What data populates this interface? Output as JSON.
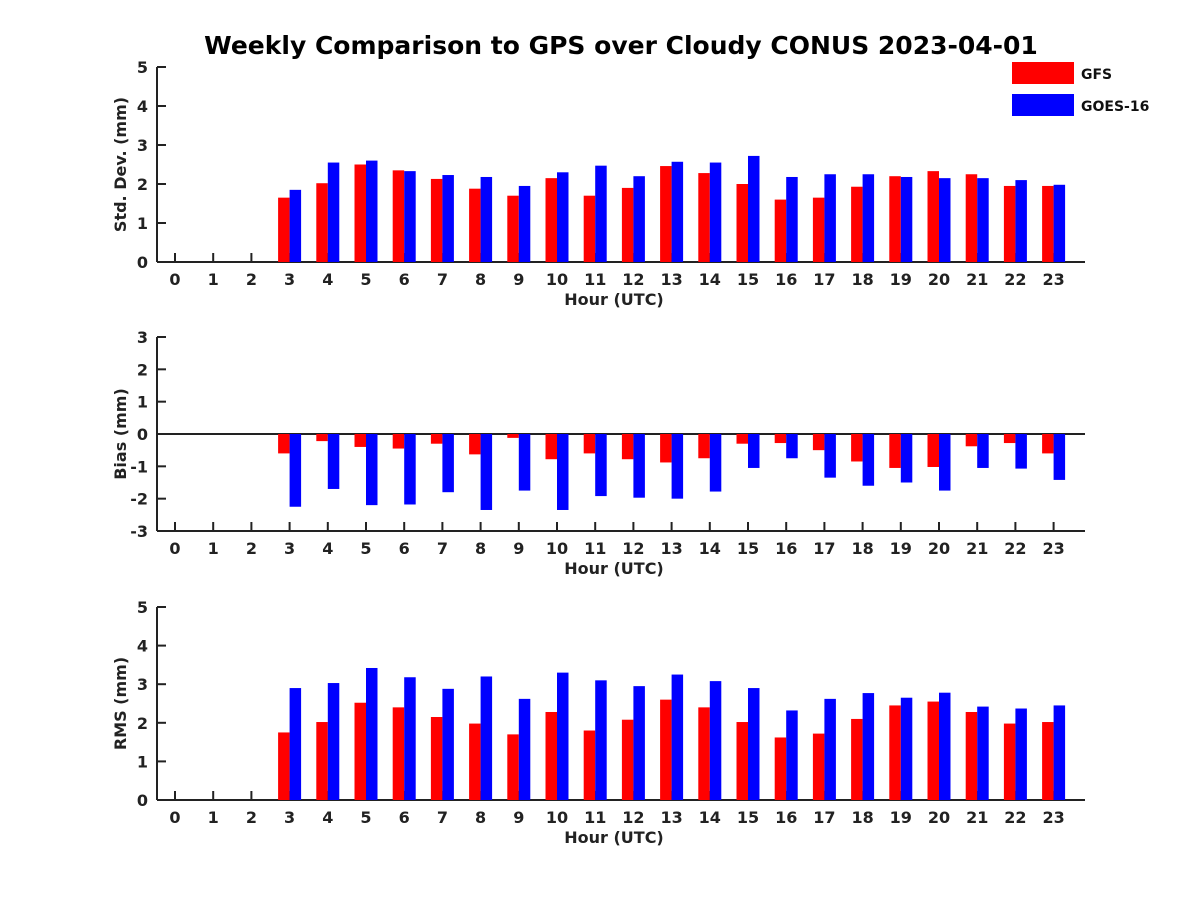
{
  "title": "Weekly Comparison to GPS over Cloudy CONUS 2023-04-01",
  "legend": [
    {
      "name": "GFS",
      "color": "#ff0000"
    },
    {
      "name": "GOES-16",
      "color": "#0000ff"
    }
  ],
  "chart_data": [
    {
      "type": "bar",
      "ylabel": "Std. Dev. (mm)",
      "xlabel": "Hour (UTC)",
      "ylim": [
        0,
        5
      ],
      "yticks": [
        0,
        1,
        2,
        3,
        4,
        5
      ],
      "categories": [
        "0",
        "1",
        "2",
        "3",
        "4",
        "5",
        "6",
        "7",
        "8",
        "9",
        "10",
        "11",
        "12",
        "13",
        "14",
        "15",
        "16",
        "17",
        "18",
        "19",
        "20",
        "21",
        "22",
        "23"
      ],
      "series": [
        {
          "name": "GFS",
          "color": "#ff0000",
          "values": [
            null,
            null,
            null,
            1.65,
            2.02,
            2.5,
            2.35,
            2.13,
            1.88,
            1.7,
            2.15,
            1.7,
            1.9,
            2.46,
            2.28,
            2.0,
            1.6,
            1.65,
            1.93,
            2.2,
            2.33,
            2.25,
            1.95,
            1.95
          ]
        },
        {
          "name": "GOES-16",
          "color": "#0000ff",
          "values": [
            null,
            null,
            null,
            1.85,
            2.55,
            2.6,
            2.33,
            2.23,
            2.18,
            1.95,
            2.3,
            2.47,
            2.2,
            2.57,
            2.55,
            2.72,
            2.18,
            2.25,
            2.25,
            2.18,
            2.15,
            2.15,
            2.1,
            1.98
          ]
        }
      ]
    },
    {
      "type": "bar",
      "ylabel": "Bias (mm)",
      "xlabel": "Hour (UTC)",
      "ylim": [
        -3,
        3
      ],
      "yticks": [
        -3,
        -2,
        -1,
        0,
        1,
        2,
        3
      ],
      "categories": [
        "0",
        "1",
        "2",
        "3",
        "4",
        "5",
        "6",
        "7",
        "8",
        "9",
        "10",
        "11",
        "12",
        "13",
        "14",
        "15",
        "16",
        "17",
        "18",
        "19",
        "20",
        "21",
        "22",
        "23"
      ],
      "series": [
        {
          "name": "GFS",
          "color": "#ff0000",
          "values": [
            null,
            null,
            null,
            -0.6,
            -0.22,
            -0.4,
            -0.45,
            -0.3,
            -0.63,
            -0.12,
            -0.78,
            -0.6,
            -0.78,
            -0.88,
            -0.75,
            -0.3,
            -0.28,
            -0.5,
            -0.85,
            -1.05,
            -1.02,
            -0.38,
            -0.28,
            -0.6
          ]
        },
        {
          "name": "GOES-16",
          "color": "#0000ff",
          "values": [
            null,
            null,
            null,
            -2.25,
            -1.7,
            -2.2,
            -2.18,
            -1.8,
            -2.35,
            -1.75,
            -2.35,
            -1.92,
            -1.97,
            -2.0,
            -1.78,
            -1.05,
            -0.75,
            -1.35,
            -1.6,
            -1.5,
            -1.75,
            -1.05,
            -1.07,
            -1.42
          ]
        }
      ]
    },
    {
      "type": "bar",
      "ylabel": "RMS (mm)",
      "xlabel": "Hour (UTC)",
      "ylim": [
        0,
        5
      ],
      "yticks": [
        0,
        1,
        2,
        3,
        4,
        5
      ],
      "categories": [
        "0",
        "1",
        "2",
        "3",
        "4",
        "5",
        "6",
        "7",
        "8",
        "9",
        "10",
        "11",
        "12",
        "13",
        "14",
        "15",
        "16",
        "17",
        "18",
        "19",
        "20",
        "21",
        "22",
        "23"
      ],
      "series": [
        {
          "name": "GFS",
          "color": "#ff0000",
          "values": [
            null,
            null,
            null,
            1.75,
            2.02,
            2.52,
            2.4,
            2.15,
            1.98,
            1.7,
            2.28,
            1.8,
            2.08,
            2.6,
            2.4,
            2.02,
            1.62,
            1.72,
            2.1,
            2.45,
            2.55,
            2.28,
            1.98,
            2.02
          ]
        },
        {
          "name": "GOES-16",
          "color": "#0000ff",
          "values": [
            null,
            null,
            null,
            2.9,
            3.03,
            3.42,
            3.18,
            2.88,
            3.2,
            2.62,
            3.3,
            3.1,
            2.95,
            3.25,
            3.08,
            2.9,
            2.32,
            2.62,
            2.77,
            2.65,
            2.78,
            2.42,
            2.37,
            2.45
          ]
        }
      ]
    }
  ]
}
